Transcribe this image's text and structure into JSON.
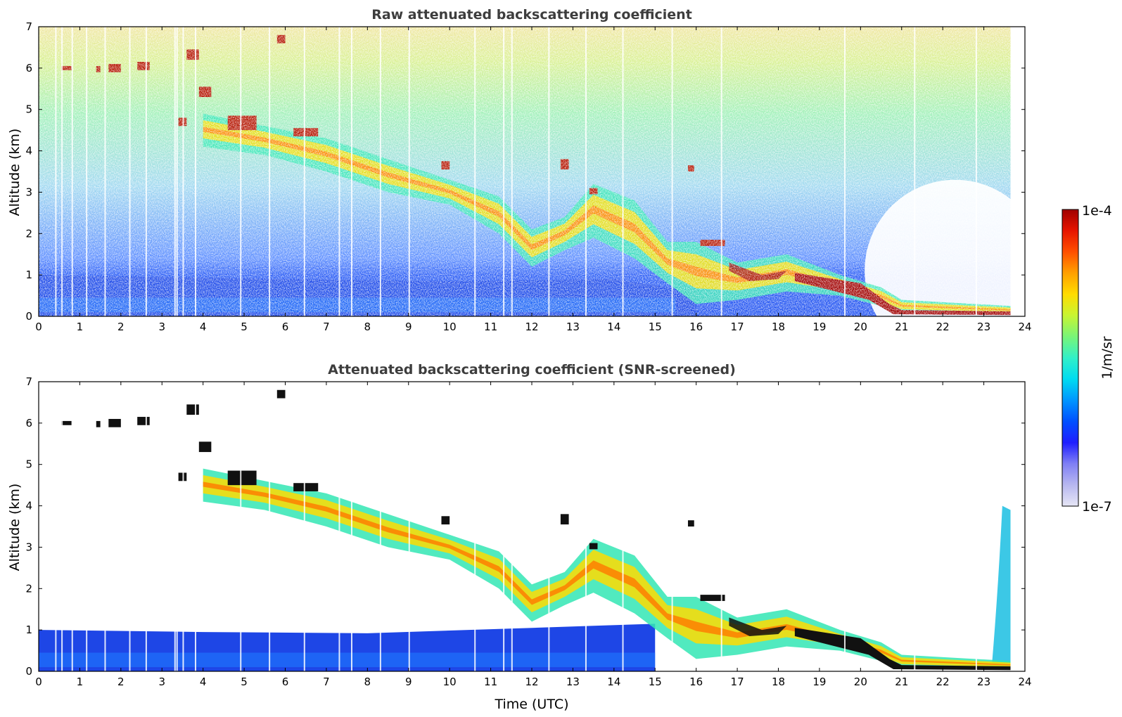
{
  "chart_data": [
    {
      "type": "heatmap",
      "title": "Raw attenuated backscattering coefficient",
      "xlabel": "",
      "ylabel": "Altitude (km)",
      "xlim": [
        0,
        24
      ],
      "ylim": [
        0,
        7
      ],
      "xticks": [
        "0",
        "1",
        "2",
        "3",
        "4",
        "5",
        "6",
        "7",
        "8",
        "9",
        "10",
        "11",
        "12",
        "13",
        "14",
        "15",
        "16",
        "17",
        "18",
        "19",
        "20",
        "21",
        "22",
        "23",
        "24"
      ],
      "yticks": [
        "0",
        "1",
        "2",
        "3",
        "4",
        "5",
        "6",
        "7"
      ],
      "data_end_time": 23.65,
      "features": [
        {
          "name": "boundary layer aerosol",
          "time": [
            0,
            15
          ],
          "altitude": [
            0,
            1.0
          ]
        },
        {
          "name": "descending cirrus / precipitation layer",
          "time": [
            4,
            20.5
          ],
          "altitude": [
            5.0,
            0.8
          ]
        },
        {
          "name": "surface cloud layer",
          "time": [
            20.5,
            23.65
          ],
          "altitude": [
            0,
            0.2
          ]
        }
      ]
    },
    {
      "type": "heatmap",
      "title": "Attenuated backscattering coefficient (SNR-screened)",
      "xlabel": "Time (UTC)",
      "ylabel": "Altitude (km)",
      "xlim": [
        0,
        24
      ],
      "ylim": [
        0,
        7
      ],
      "xticks": [
        "0",
        "1",
        "2",
        "3",
        "4",
        "5",
        "6",
        "7",
        "8",
        "9",
        "10",
        "11",
        "12",
        "13",
        "14",
        "15",
        "16",
        "17",
        "18",
        "19",
        "20",
        "21",
        "22",
        "23",
        "24"
      ],
      "yticks": [
        "0",
        "1",
        "2",
        "3",
        "4",
        "5",
        "6",
        "7"
      ],
      "data_end_time": 23.65
    }
  ],
  "colorbar": {
    "max_label": "1e-4",
    "min_label": "1e-7",
    "unit_label": "1/m/sr",
    "colors": [
      "#e6e6f5",
      "#b8b8f0",
      "#7f7ff5",
      "#1e1eff",
      "#0050ff",
      "#0096ff",
      "#00dcf0",
      "#32f0c8",
      "#78f578",
      "#c8f532",
      "#ffdc00",
      "#ffa000",
      "#ff5000",
      "#e61400",
      "#a00000"
    ]
  }
}
